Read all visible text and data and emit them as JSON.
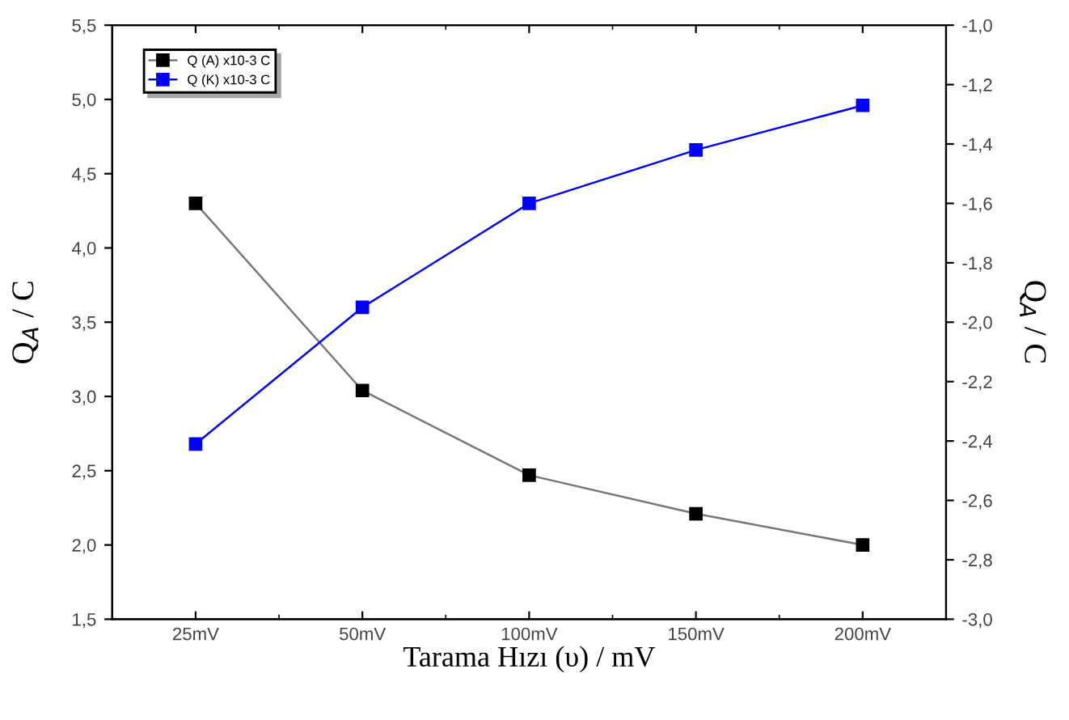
{
  "chart_data": {
    "type": "line",
    "xlabel": "Tarama Hızı (υ) / mV",
    "ylabel": "Q$_{A}$ / C",
    "y2label": "Q$_{A}$ / C",
    "categories": [
      "25mV",
      "50mV",
      "100mV",
      "150mV",
      "200mV"
    ],
    "series": [
      {
        "name": "Q (A) x10-3 C",
        "color": "#000000",
        "values": [
          4.3,
          3.04,
          2.47,
          2.21,
          2.0
        ],
        "axis": "y"
      },
      {
        "name": "Q (K) x10-3 C",
        "color": "#0000ff",
        "values": [
          -2.41,
          -1.95,
          -1.6,
          -1.42,
          -1.27
        ],
        "axis": "y2"
      }
    ],
    "ylim": [
      1.5,
      5.5
    ],
    "yticks": [
      {
        "value": 1.5,
        "label": "1,5"
      },
      {
        "value": 2.0,
        "label": "2,0"
      },
      {
        "value": 2.5,
        "label": "2,5"
      },
      {
        "value": 3.0,
        "label": "3,0"
      },
      {
        "value": 3.5,
        "label": "3,5"
      },
      {
        "value": 4.0,
        "label": "4,0"
      },
      {
        "value": 4.5,
        "label": "4,5"
      },
      {
        "value": 5.0,
        "label": "5,0"
      },
      {
        "value": 5.5,
        "label": "5,5"
      }
    ],
    "y2lim": [
      -3.0,
      -1.0
    ],
    "y2ticks": [
      {
        "value": -3.0,
        "label": "-3,0"
      },
      {
        "value": -2.8,
        "label": "-2,8"
      },
      {
        "value": -2.6,
        "label": "-2,6"
      },
      {
        "value": -2.4,
        "label": "-2,4"
      },
      {
        "value": -2.2,
        "label": "-2,2"
      },
      {
        "value": -2.0,
        "label": "-2,0"
      },
      {
        "value": -1.8,
        "label": "-1,8"
      },
      {
        "value": -1.6,
        "label": "-1,6"
      },
      {
        "value": -1.4,
        "label": "-1,4"
      },
      {
        "value": -1.2,
        "label": "-1,2"
      },
      {
        "value": -1.0,
        "label": "-1,0"
      }
    ],
    "marker": "square",
    "line_style": "solid",
    "grid": false,
    "legend": "top left"
  }
}
